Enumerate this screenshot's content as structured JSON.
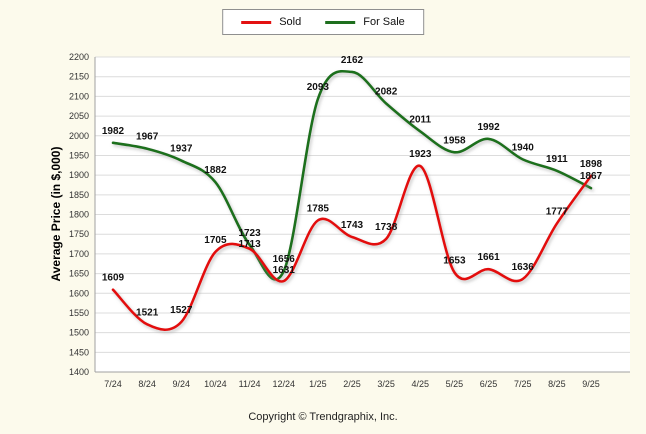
{
  "page": {
    "background": "#fcfaec"
  },
  "chart_data": {
    "type": "line",
    "title": "",
    "categories": [
      "7/24",
      "8/24",
      "9/24",
      "10/24",
      "11/24",
      "12/24",
      "1/25",
      "2/25",
      "3/25",
      "4/25",
      "5/25",
      "6/25",
      "7/25",
      "8/25",
      "9/25"
    ],
    "series": [
      {
        "name": "Sold",
        "color": "#e31111",
        "values": [
          1609,
          1521,
          1527,
          1705,
          1713,
          1631,
          1785,
          1743,
          1738,
          1923,
          1653,
          1661,
          1636,
          1777,
          1898
        ]
      },
      {
        "name": "For Sale",
        "color": "#1e6f1e",
        "values": [
          1982,
          1967,
          1937,
          1882,
          1723,
          1656,
          2093,
          2162,
          2082,
          2011,
          1958,
          1992,
          1940,
          1911,
          1867
        ]
      }
    ],
    "xlabel": "",
    "ylabel": "Average Price (in $,000)",
    "ylim": [
      1400,
      2200
    ],
    "ytick_step": 50,
    "y_ticks": [
      1400,
      1450,
      1500,
      1550,
      1600,
      1650,
      1700,
      1750,
      1800,
      1850,
      1900,
      1950,
      2000,
      2050,
      2100,
      2150,
      2200
    ],
    "grid": true,
    "legend_position": "top-center"
  },
  "footer": {
    "copyright": "Copyright © Trendgraphix, Inc."
  }
}
